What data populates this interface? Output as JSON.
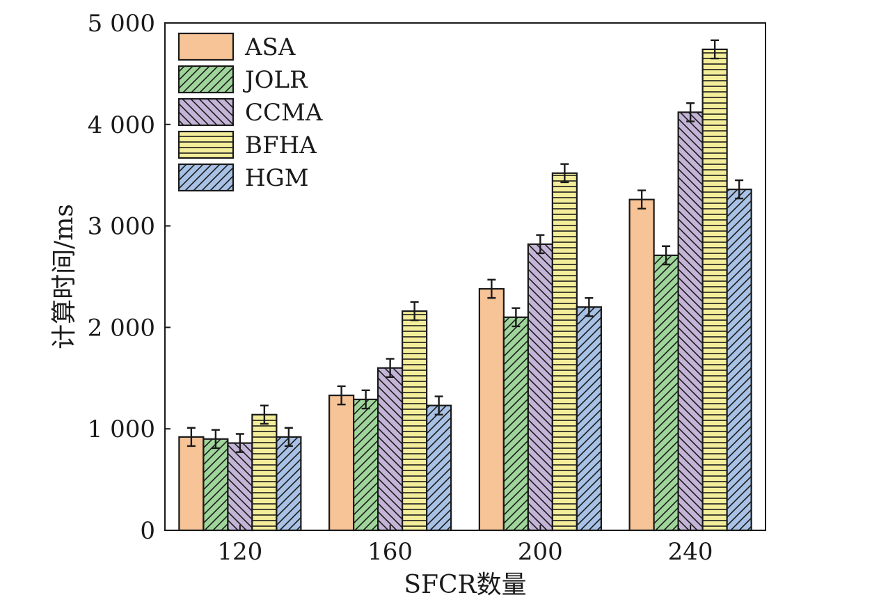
{
  "chart_data": {
    "type": "bar",
    "title": "",
    "xlabel": "SFCR数量",
    "ylabel": "计算时间/ms",
    "categories": [
      "120",
      "160",
      "200",
      "240"
    ],
    "ylim": [
      0,
      5000
    ],
    "yticks": [
      0,
      1000,
      2000,
      3000,
      4000,
      5000
    ],
    "ytick_labels": [
      "0",
      "1 000",
      "2 000",
      "3 000",
      "4 000",
      "5 000"
    ],
    "grid": false,
    "legend_position": "top-left",
    "error_bar_halfwidth": 90,
    "series": [
      {
        "name": "ASA",
        "values": [
          920,
          1330,
          2380,
          3260
        ],
        "color": "#f6c497",
        "pattern": "solid"
      },
      {
        "name": "JOLR",
        "values": [
          900,
          1290,
          2100,
          2710
        ],
        "color": "#9fd59a",
        "pattern": "diag-right"
      },
      {
        "name": "CCMA",
        "values": [
          860,
          1600,
          2820,
          4120
        ],
        "color": "#c4b5d8",
        "pattern": "diag-left"
      },
      {
        "name": "BFHA",
        "values": [
          1140,
          2160,
          3520,
          4740
        ],
        "color": "#f4ee9b",
        "pattern": "horizontal"
      },
      {
        "name": "HGM",
        "values": [
          920,
          1230,
          2200,
          3360
        ],
        "color": "#a8c2e6",
        "pattern": "diag-right"
      }
    ]
  }
}
